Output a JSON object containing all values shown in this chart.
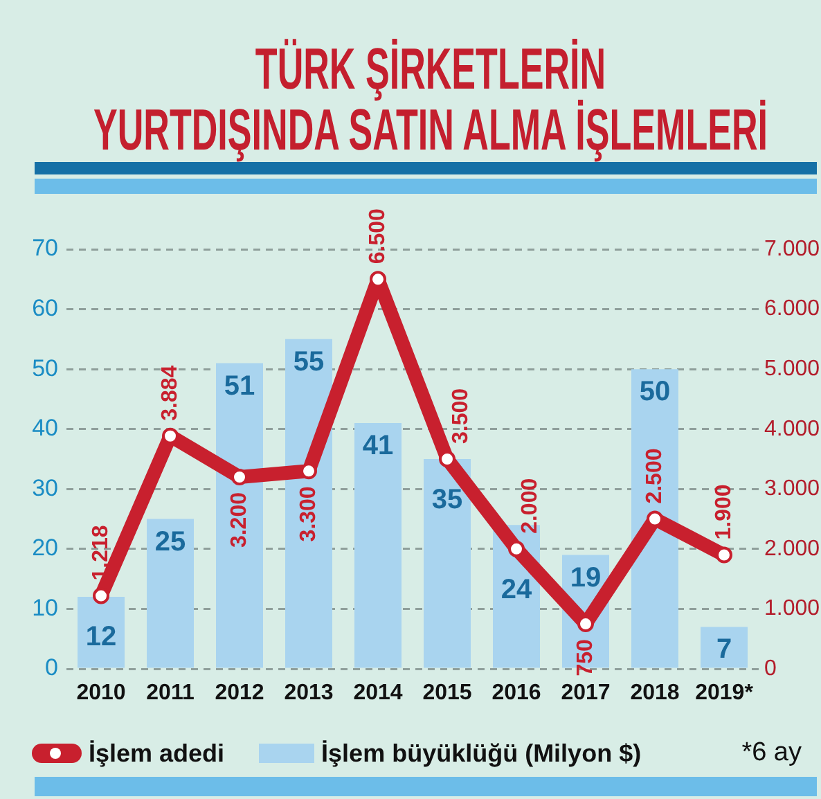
{
  "chart_data": {
    "type": "bar",
    "title": "TÜRK ŞİRKETLERİN\nYURTDIŞINDA SATIN ALMA İŞLEMLERİ",
    "categories": [
      "2010",
      "2011",
      "2012",
      "2013",
      "2014",
      "2015",
      "2016",
      "2017",
      "2018",
      "2019*"
    ],
    "series": [
      {
        "name": "İşlem adedi",
        "type": "line",
        "axis": "y2",
        "color": "#c8202e",
        "values": [
          1218,
          3884,
          3200,
          3300,
          6500,
          3500,
          2000,
          750,
          2500,
          1900
        ],
        "value_labels": [
          "1.218",
          "3.884",
          "3.200",
          "3.300",
          "6.500",
          "3.500",
          "2.000",
          "750",
          "2.500",
          "1.900"
        ]
      },
      {
        "name": "İşlem büyüklüğü (Milyon $)",
        "color": "#a9d4ef",
        "values": [
          12,
          25,
          51,
          55,
          41,
          35,
          24,
          19,
          50,
          7
        ],
        "value_labels": [
          "12",
          "25",
          "51",
          "55",
          "41",
          "35",
          "24",
          "19",
          "50",
          "7"
        ]
      }
    ],
    "ylim": [
      0,
      70
    ],
    "yticks": [
      0,
      10,
      20,
      30,
      40,
      50,
      60,
      70
    ],
    "y2lim": [
      0,
      7000
    ],
    "y2ticks": [
      0,
      {
        "value": 1000,
        "label": "1.000"
      },
      {
        "value": 2000,
        "label": "2.000"
      },
      {
        "value": 3000,
        "label": "3.000"
      },
      {
        "value": 4000,
        "label": "4.000"
      },
      {
        "value": 5000,
        "label": "5.000"
      },
      {
        "value": 6000,
        "label": "6.000"
      },
      {
        "value": 7000,
        "label": "7.000"
      }
    ],
    "grid": "y",
    "legend": "bottom",
    "marker": "circle",
    "annotations": [
      "*6 ay"
    ]
  }
}
